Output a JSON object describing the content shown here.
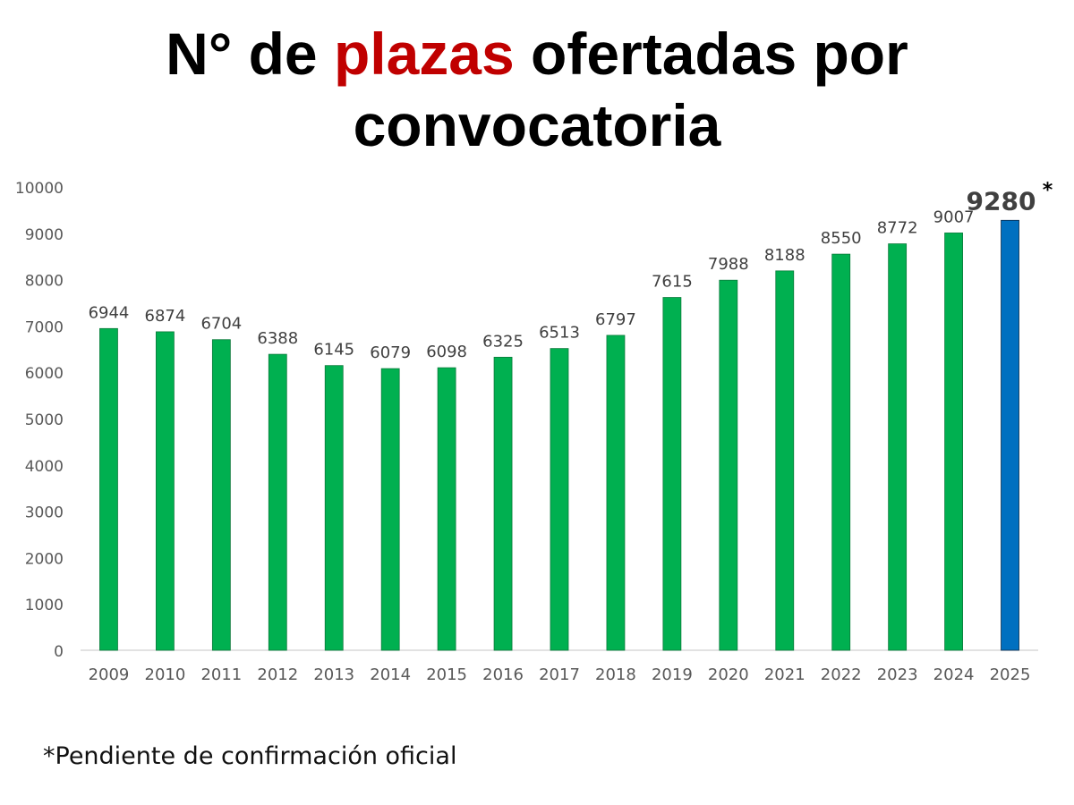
{
  "title": {
    "part1": "N° de ",
    "highlight": "plazas",
    "part2": " ofertadas por",
    "line2": "convocatoria"
  },
  "colors": {
    "bar": "#00b050",
    "bar_highlight": "#0070c0",
    "title_highlight": "#c00000"
  },
  "chart_data": {
    "type": "bar",
    "categories": [
      "2009",
      "2010",
      "2011",
      "2012",
      "2013",
      "2014",
      "2015",
      "2016",
      "2017",
      "2018",
      "2019",
      "2020",
      "2021",
      "2022",
      "2023",
      "2024",
      "2025"
    ],
    "values": [
      6944,
      6874,
      6704,
      6388,
      6145,
      6079,
      6098,
      6325,
      6513,
      6797,
      7615,
      7988,
      8188,
      8550,
      8772,
      9007,
      9280
    ],
    "ylim": [
      0,
      10000
    ],
    "yticks": [
      0,
      1000,
      2000,
      3000,
      4000,
      5000,
      6000,
      7000,
      8000,
      9000,
      10000
    ],
    "highlight_index": 16,
    "highlight_marker": "*",
    "xlabel": "",
    "ylabel": "",
    "grid": false
  },
  "footnote": "*Pendiente de confirmación oficial"
}
